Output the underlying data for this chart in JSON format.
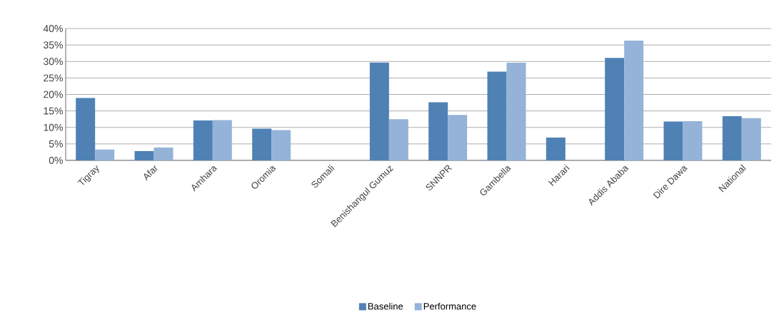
{
  "chart_data": {
    "type": "bar",
    "categories": [
      "Tigray",
      "Afar",
      "Amhara",
      "Oromia",
      "Somali",
      "Benishangul Gumuz",
      "SNNPR",
      "Gambella",
      "Harari",
      "Addis Ababa",
      "Dire Dawa",
      "National"
    ],
    "series": [
      {
        "name": "Baseline",
        "color": "#4f81b5",
        "values": [
          18.9,
          2.8,
          12.1,
          9.6,
          null,
          29.7,
          17.6,
          26.9,
          6.9,
          31.1,
          11.8,
          13.4
        ]
      },
      {
        "name": "Performance",
        "color": "#95b3d8",
        "values": [
          3.3,
          3.9,
          12.2,
          9.2,
          null,
          12.5,
          13.8,
          29.6,
          null,
          36.3,
          11.9,
          12.8
        ]
      }
    ],
    "ylim": [
      0,
      40
    ],
    "yticks": [
      {
        "value": 0,
        "label": "0%"
      },
      {
        "value": 5,
        "label": "5%"
      },
      {
        "value": 10,
        "label": "10%"
      },
      {
        "value": 15,
        "label": "15%"
      },
      {
        "value": 20,
        "label": "20%"
      },
      {
        "value": 25,
        "label": "25%"
      },
      {
        "value": 30,
        "label": "30%"
      },
      {
        "value": 35,
        "label": "35%"
      },
      {
        "value": 40,
        "label": "40%"
      }
    ],
    "grid": "y",
    "legend": "bottom"
  }
}
